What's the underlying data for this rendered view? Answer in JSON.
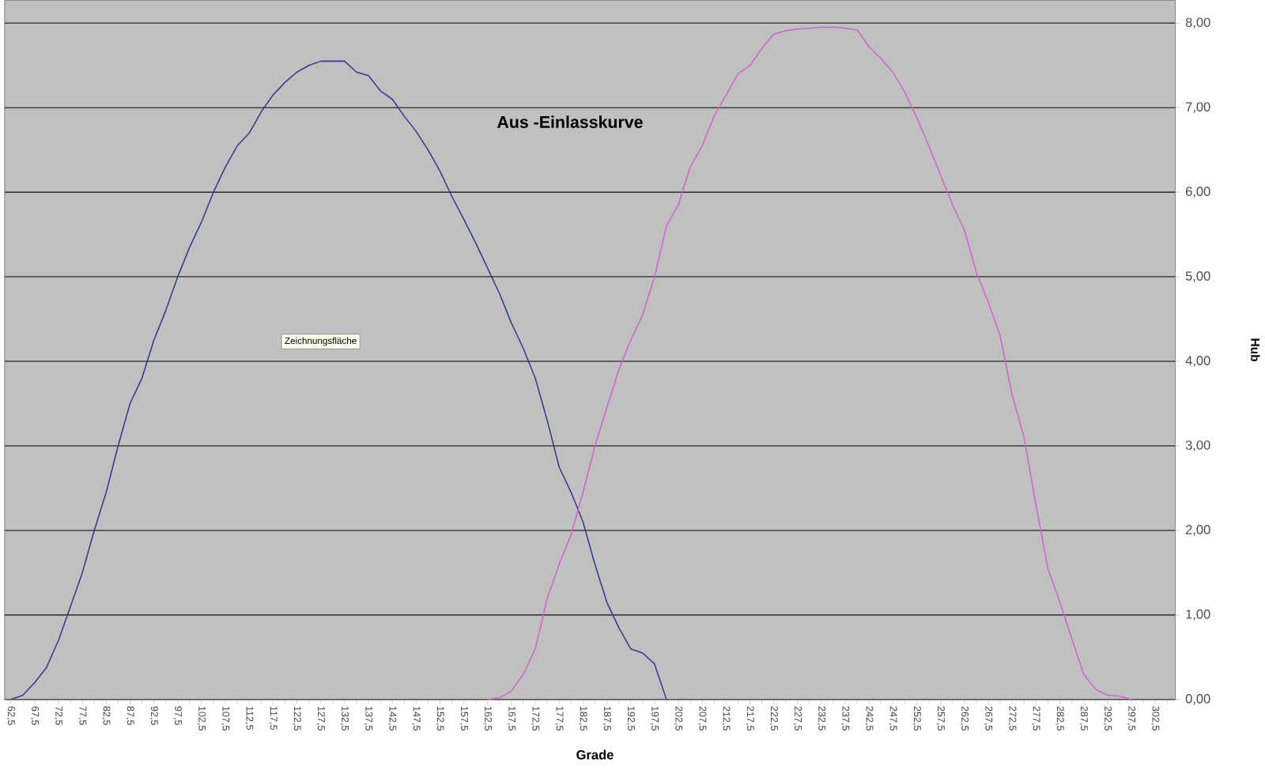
{
  "chart_data": {
    "type": "line",
    "title": "Aus -Einlasskurve",
    "xlabel": "Grade",
    "ylabel": "Hub",
    "annotations": [
      "Zeichnungsfläche"
    ],
    "xlim": [
      61.2,
      306.7
    ],
    "ylim": [
      0,
      8.27
    ],
    "xticks": [
      {
        "value": 62.5,
        "label": "62,5"
      },
      {
        "value": 65,
        "label": null
      },
      {
        "value": 67.5,
        "label": "67,5"
      },
      {
        "value": 70,
        "label": null
      },
      {
        "value": 72.5,
        "label": "72,5"
      },
      {
        "value": 75,
        "label": null
      },
      {
        "value": 77.5,
        "label": "77,5"
      },
      {
        "value": 80,
        "label": null
      },
      {
        "value": 82.5,
        "label": "82,5"
      },
      {
        "value": 85,
        "label": null
      },
      {
        "value": 87.5,
        "label": "87,5"
      },
      {
        "value": 90,
        "label": null
      },
      {
        "value": 92.5,
        "label": "92,5"
      },
      {
        "value": 95,
        "label": null
      },
      {
        "value": 97.5,
        "label": "97,5"
      },
      {
        "value": 100,
        "label": null
      },
      {
        "value": 102.5,
        "label": "102,5"
      },
      {
        "value": 105,
        "label": null
      },
      {
        "value": 107.5,
        "label": "107,5"
      },
      {
        "value": 110,
        "label": null
      },
      {
        "value": 112.5,
        "label": "112,5"
      },
      {
        "value": 115,
        "label": null
      },
      {
        "value": 117.5,
        "label": "117,5"
      },
      {
        "value": 120,
        "label": null
      },
      {
        "value": 122.5,
        "label": "122,5"
      },
      {
        "value": 125,
        "label": null
      },
      {
        "value": 127.5,
        "label": "127,5"
      },
      {
        "value": 130,
        "label": null
      },
      {
        "value": 132.5,
        "label": "132,5"
      },
      {
        "value": 135,
        "label": null
      },
      {
        "value": 137.5,
        "label": "137,5"
      },
      {
        "value": 140,
        "label": null
      },
      {
        "value": 142.5,
        "label": "142,5"
      },
      {
        "value": 145,
        "label": null
      },
      {
        "value": 147.5,
        "label": "147,5"
      },
      {
        "value": 150,
        "label": null
      },
      {
        "value": 152.5,
        "label": "152,5"
      },
      {
        "value": 155,
        "label": null
      },
      {
        "value": 157.5,
        "label": "157,5"
      },
      {
        "value": 160,
        "label": null
      },
      {
        "value": 162.5,
        "label": "162,5"
      },
      {
        "value": 165,
        "label": null
      },
      {
        "value": 167.5,
        "label": "167,5"
      },
      {
        "value": 170,
        "label": null
      },
      {
        "value": 172.5,
        "label": "172,5"
      },
      {
        "value": 175,
        "label": null
      },
      {
        "value": 177.5,
        "label": "177,5"
      },
      {
        "value": 180,
        "label": null
      },
      {
        "value": 182.5,
        "label": "182,5"
      },
      {
        "value": 185,
        "label": null
      },
      {
        "value": 187.5,
        "label": "187,5"
      },
      {
        "value": 190,
        "label": null
      },
      {
        "value": 192.5,
        "label": "192,5"
      },
      {
        "value": 195,
        "label": null
      },
      {
        "value": 197.5,
        "label": "197,5"
      },
      {
        "value": 200,
        "label": null
      },
      {
        "value": 202.5,
        "label": "202,5"
      },
      {
        "value": 205,
        "label": null
      },
      {
        "value": 207.5,
        "label": "207,5"
      },
      {
        "value": 210,
        "label": null
      },
      {
        "value": 212.5,
        "label": "212,5"
      },
      {
        "value": 215,
        "label": null
      },
      {
        "value": 217.5,
        "label": "217,5"
      },
      {
        "value": 220,
        "label": null
      },
      {
        "value": 222.5,
        "label": "222,5"
      },
      {
        "value": 225,
        "label": null
      },
      {
        "value": 227.5,
        "label": "227,5"
      },
      {
        "value": 230,
        "label": null
      },
      {
        "value": 232.5,
        "label": "232,5"
      },
      {
        "value": 235,
        "label": null
      },
      {
        "value": 237.5,
        "label": "237,5"
      },
      {
        "value": 240,
        "label": null
      },
      {
        "value": 242.5,
        "label": "242,5"
      },
      {
        "value": 245,
        "label": null
      },
      {
        "value": 247.5,
        "label": "247,5"
      },
      {
        "value": 250,
        "label": null
      },
      {
        "value": 252.5,
        "label": "252,5"
      },
      {
        "value": 255,
        "label": null
      },
      {
        "value": 257.5,
        "label": "257,5"
      },
      {
        "value": 260,
        "label": null
      },
      {
        "value": 262.5,
        "label": "262,5"
      },
      {
        "value": 265,
        "label": null
      },
      {
        "value": 267.5,
        "label": "267,5"
      },
      {
        "value": 270,
        "label": null
      },
      {
        "value": 272.5,
        "label": "272,5"
      },
      {
        "value": 275,
        "label": null
      },
      {
        "value": 277.5,
        "label": "277,5"
      },
      {
        "value": 280,
        "label": null
      },
      {
        "value": 282.5,
        "label": "282,5"
      },
      {
        "value": 285,
        "label": null
      },
      {
        "value": 287.5,
        "label": "287,5"
      },
      {
        "value": 290,
        "label": null
      },
      {
        "value": 292.5,
        "label": "292,5"
      },
      {
        "value": 295,
        "label": null
      },
      {
        "value": 297.5,
        "label": "297,5"
      },
      {
        "value": 300,
        "label": null
      },
      {
        "value": 302.5,
        "label": "302,5"
      },
      {
        "value": 305,
        "label": null
      }
    ],
    "yticks": [
      {
        "value": 0,
        "label": "0,00"
      },
      {
        "value": 1,
        "label": "1,00"
      },
      {
        "value": 2,
        "label": "2,00"
      },
      {
        "value": 3,
        "label": "3,00"
      },
      {
        "value": 4,
        "label": "4,00"
      },
      {
        "value": 5,
        "label": "5,00"
      },
      {
        "value": 6,
        "label": "6,00"
      },
      {
        "value": 7,
        "label": "7,00"
      },
      {
        "value": 8,
        "label": "8,00"
      }
    ],
    "grid": "y",
    "marker": "none",
    "line_style": "solid",
    "series": [
      {
        "color": "#3a3a8c",
        "x": [
          62.5,
          65,
          67.5,
          70,
          72.5,
          75,
          77.5,
          80,
          82.5,
          85,
          87.5,
          90,
          92.5,
          95,
          97.5,
          100,
          102.5,
          105,
          107.5,
          110,
          112.5,
          115,
          117.5,
          120,
          122.5,
          125,
          127.5,
          130,
          132.5,
          135,
          137.5,
          140,
          142.5,
          145,
          147.5,
          150,
          152.5,
          155,
          157.5,
          160,
          162.5,
          165,
          167.5,
          170,
          172.5,
          175,
          177.5,
          180,
          182.5,
          185,
          187.5,
          190,
          192.5,
          195,
          197.5,
          200
        ],
        "values": [
          0,
          0.05,
          0.2,
          0.38,
          0.7,
          1.1,
          1.5,
          2.0,
          2.45,
          3.0,
          3.5,
          3.8,
          4.25,
          4.6,
          5.0,
          5.35,
          5.65,
          6.0,
          6.3,
          6.55,
          6.7,
          6.95,
          7.15,
          7.3,
          7.42,
          7.5,
          7.55,
          7.55,
          7.55,
          7.42,
          7.38,
          7.2,
          7.1,
          6.9,
          6.72,
          6.5,
          6.25,
          5.95,
          5.68,
          5.4,
          5.1,
          4.8,
          4.45,
          4.15,
          3.8,
          3.3,
          2.75,
          2.45,
          2.1,
          1.6,
          1.15,
          0.85,
          0.6,
          0.55,
          0.42,
          0
        ]
      },
      {
        "color": "#cc66cc",
        "x": [
          162.5,
          165,
          167.5,
          170,
          172.5,
          175,
          177.5,
          180,
          182.5,
          185,
          187.5,
          190,
          192.5,
          195,
          197.5,
          200,
          202.5,
          205,
          207.5,
          210,
          212.5,
          215,
          217.5,
          220,
          222.5,
          225,
          227.5,
          230,
          232.5,
          235,
          237.5,
          240,
          242.5,
          245,
          247.5,
          250,
          252.5,
          255,
          257.5,
          260,
          262.5,
          265,
          267.5,
          270,
          272.5,
          275,
          277.5,
          280,
          282.5,
          285,
          287.5,
          290,
          292.5,
          295,
          297.5
        ],
        "values": [
          0,
          0.02,
          0.1,
          0.3,
          0.6,
          1.2,
          1.6,
          1.95,
          2.45,
          3.0,
          3.45,
          3.9,
          4.25,
          4.55,
          5.0,
          5.6,
          5.85,
          6.3,
          6.55,
          6.9,
          7.15,
          7.4,
          7.5,
          7.7,
          7.87,
          7.91,
          7.93,
          7.94,
          7.95,
          7.95,
          7.94,
          7.92,
          7.72,
          7.58,
          7.42,
          7.18,
          6.88,
          6.55,
          6.2,
          5.85,
          5.55,
          5.05,
          4.7,
          4.3,
          3.6,
          3.1,
          2.3,
          1.55,
          1.15,
          0.72,
          0.3,
          0.12,
          0.05,
          0.04,
          0
        ]
      }
    ]
  }
}
